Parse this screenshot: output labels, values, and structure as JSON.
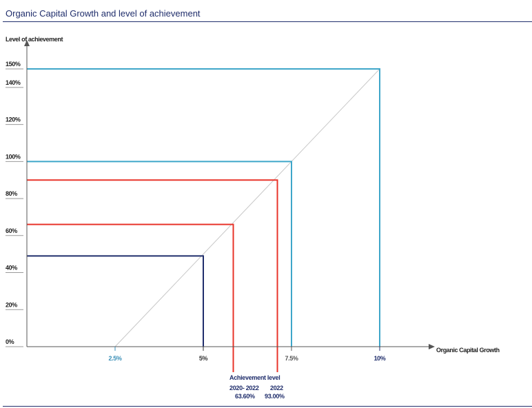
{
  "header": {
    "title": "Organic Capital Growth and level of achievement"
  },
  "chart_data": {
    "type": "line",
    "ylabel": "Level of achievement",
    "xlabel": "Organic Capital Growth",
    "y_ticks": [
      "0%",
      "20%",
      "40%",
      "60%",
      "80%",
      "100%",
      "120%",
      "140%",
      "150%"
    ],
    "x_ticks": [
      {
        "value": 2.5,
        "label": "2.5%",
        "color": "#3a8fb7"
      },
      {
        "value": 5,
        "label": "5%",
        "color": "#333333"
      },
      {
        "value": 7.5,
        "label": "7.5%",
        "color": "#555555"
      },
      {
        "value": 10,
        "label": "10%",
        "color": "#1f2d6b"
      }
    ],
    "xlim": [
      0,
      11
    ],
    "ylim": [
      0,
      150
    ],
    "diagonal": {
      "x": [
        2.5,
        10
      ],
      "y": [
        0,
        150
      ],
      "color": "#c8c8c8"
    },
    "series": [
      {
        "x": 10,
        "y": 150,
        "color": "#3ea6c9"
      },
      {
        "x": 7.5,
        "y": 100,
        "color": "#3ea6c9"
      },
      {
        "x": 7.1,
        "y": 90,
        "color": "#e8342a"
      },
      {
        "x": 5.85,
        "y": 66,
        "color": "#e8342a"
      },
      {
        "x": 5,
        "y": 49,
        "color": "#1f2d6b"
      }
    ],
    "annotation": {
      "title": "Achievement level",
      "years": [
        "2020- 2022",
        "2022"
      ],
      "values": [
        "63.60%",
        "93.00%"
      ]
    },
    "grid": false
  }
}
